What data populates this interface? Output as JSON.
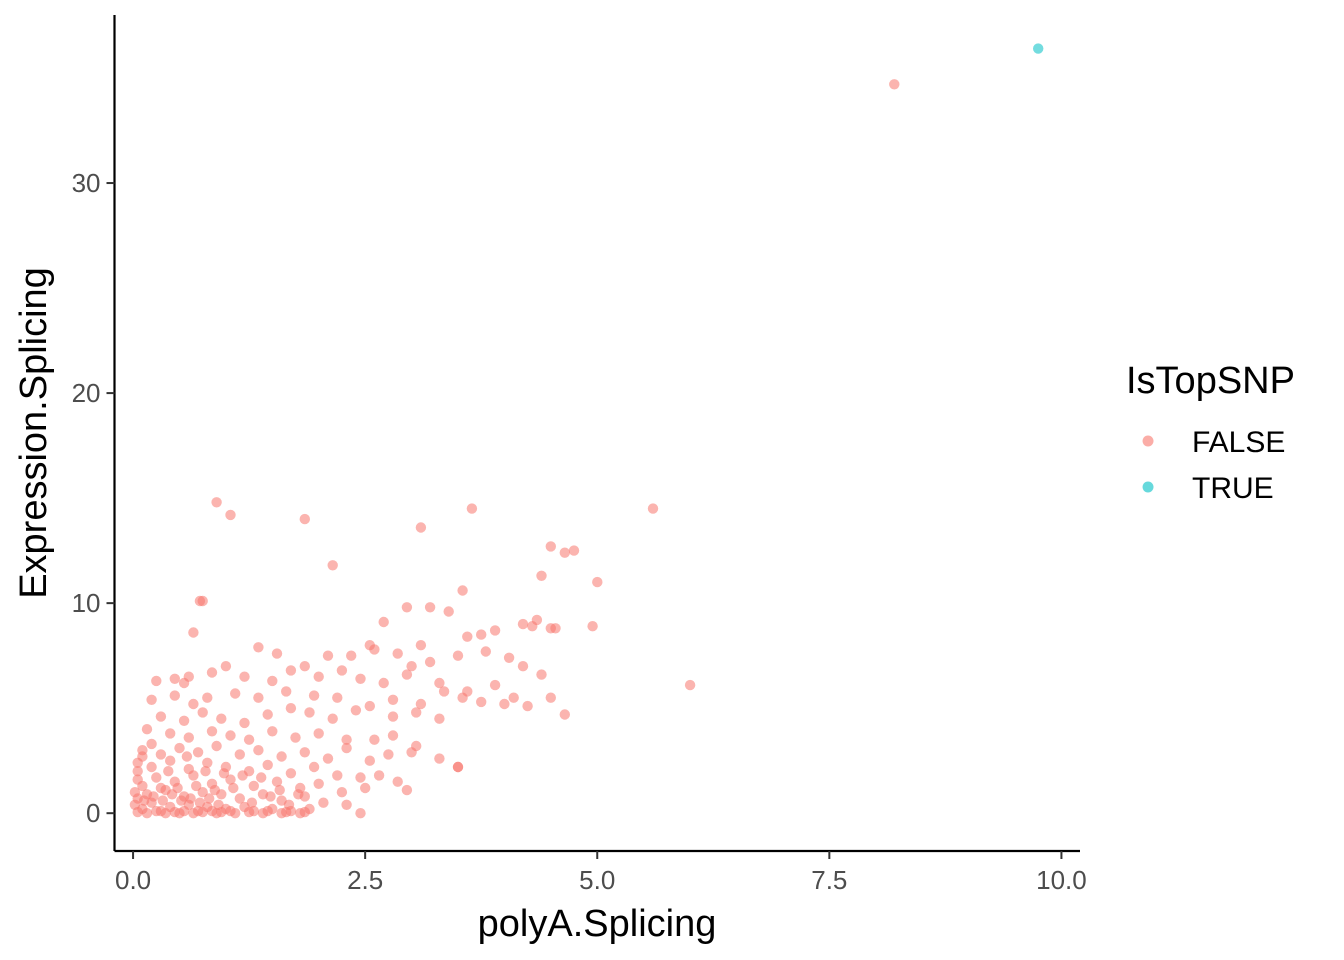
{
  "chart_data": {
    "type": "scatter",
    "xlabel": "polyA.Splicing",
    "ylabel": "Expression.Splicing",
    "xlim": [
      -0.2,
      10.2
    ],
    "ylim": [
      -1.8,
      38.0
    ],
    "x_ticks": [
      0.0,
      2.5,
      5.0,
      7.5,
      10.0
    ],
    "x_tick_labels": [
      "0.0",
      "2.5",
      "5.0",
      "7.5",
      "10.0"
    ],
    "y_ticks": [
      0,
      10,
      20,
      30
    ],
    "y_tick_labels": [
      "0",
      "10",
      "20",
      "30"
    ],
    "grid": false,
    "legend": {
      "title": "IsTopSNP",
      "placement": "right",
      "entries": [
        {
          "label": "FALSE",
          "color": "#F8766D"
        },
        {
          "label": "TRUE",
          "color": "#00BFC4"
        }
      ]
    },
    "point_opacity": 0.55,
    "series": [
      {
        "name": "FALSE",
        "color": "#F8766D",
        "points": [
          [
            8.2,
            34.7
          ],
          [
            5.6,
            14.5
          ],
          [
            3.65,
            14.5
          ],
          [
            0.9,
            14.8
          ],
          [
            1.05,
            14.2
          ],
          [
            1.85,
            14.0
          ],
          [
            3.1,
            13.6
          ],
          [
            4.5,
            12.7
          ],
          [
            4.75,
            12.5
          ],
          [
            4.65,
            12.4
          ],
          [
            2.15,
            11.8
          ],
          [
            4.4,
            11.3
          ],
          [
            5.0,
            11.0
          ],
          [
            3.55,
            10.6
          ],
          [
            0.75,
            10.1
          ],
          [
            0.72,
            10.1
          ],
          [
            2.95,
            9.8
          ],
          [
            3.2,
            9.8
          ],
          [
            3.4,
            9.6
          ],
          [
            4.35,
            9.2
          ],
          [
            4.2,
            9.0
          ],
          [
            4.95,
            8.9
          ],
          [
            4.5,
            8.8
          ],
          [
            4.55,
            8.8
          ],
          [
            4.3,
            8.9
          ],
          [
            3.9,
            8.7
          ],
          [
            3.75,
            8.5
          ],
          [
            3.6,
            8.4
          ],
          [
            2.7,
            9.1
          ],
          [
            2.55,
            8.0
          ],
          [
            3.1,
            8.0
          ],
          [
            0.65,
            8.6
          ],
          [
            1.35,
            7.9
          ],
          [
            1.55,
            7.6
          ],
          [
            2.1,
            7.5
          ],
          [
            2.35,
            7.5
          ],
          [
            2.6,
            7.8
          ],
          [
            2.85,
            7.6
          ],
          [
            3.0,
            7.0
          ],
          [
            3.2,
            7.2
          ],
          [
            3.5,
            7.5
          ],
          [
            3.8,
            7.7
          ],
          [
            4.05,
            7.4
          ],
          [
            4.2,
            7.0
          ],
          [
            4.4,
            6.6
          ],
          [
            6.0,
            6.1
          ],
          [
            0.25,
            6.3
          ],
          [
            0.45,
            6.4
          ],
          [
            0.55,
            6.2
          ],
          [
            0.6,
            6.5
          ],
          [
            0.85,
            6.7
          ],
          [
            1.0,
            7.0
          ],
          [
            1.2,
            6.5
          ],
          [
            1.5,
            6.3
          ],
          [
            1.7,
            6.8
          ],
          [
            1.85,
            7.0
          ],
          [
            2.0,
            6.5
          ],
          [
            2.25,
            6.8
          ],
          [
            2.45,
            6.4
          ],
          [
            2.7,
            6.2
          ],
          [
            2.95,
            6.6
          ],
          [
            3.3,
            6.2
          ],
          [
            3.6,
            5.8
          ],
          [
            3.9,
            6.1
          ],
          [
            4.1,
            5.5
          ],
          [
            4.5,
            5.5
          ],
          [
            4.65,
            4.7
          ],
          [
            0.2,
            5.4
          ],
          [
            0.45,
            5.6
          ],
          [
            0.65,
            5.2
          ],
          [
            0.8,
            5.5
          ],
          [
            1.1,
            5.7
          ],
          [
            1.35,
            5.5
          ],
          [
            1.65,
            5.8
          ],
          [
            1.95,
            5.6
          ],
          [
            2.2,
            5.5
          ],
          [
            2.55,
            5.1
          ],
          [
            2.8,
            5.4
          ],
          [
            3.1,
            5.2
          ],
          [
            3.35,
            5.8
          ],
          [
            3.55,
            5.5
          ],
          [
            3.75,
            5.3
          ],
          [
            4.0,
            5.2
          ],
          [
            4.25,
            5.1
          ],
          [
            0.3,
            4.6
          ],
          [
            0.55,
            4.4
          ],
          [
            0.75,
            4.8
          ],
          [
            0.95,
            4.5
          ],
          [
            1.2,
            4.3
          ],
          [
            1.45,
            4.7
          ],
          [
            1.7,
            5.0
          ],
          [
            1.9,
            4.8
          ],
          [
            2.15,
            4.5
          ],
          [
            2.4,
            4.9
          ],
          [
            2.8,
            4.6
          ],
          [
            3.05,
            4.8
          ],
          [
            3.3,
            4.5
          ],
          [
            0.15,
            4.0
          ],
          [
            0.4,
            3.8
          ],
          [
            0.6,
            3.6
          ],
          [
            0.85,
            3.9
          ],
          [
            1.05,
            3.7
          ],
          [
            1.25,
            3.5
          ],
          [
            1.5,
            3.9
          ],
          [
            1.75,
            3.6
          ],
          [
            2.0,
            3.8
          ],
          [
            2.3,
            3.5
          ],
          [
            2.6,
            3.5
          ],
          [
            2.8,
            3.7
          ],
          [
            3.05,
            3.2
          ],
          [
            0.1,
            3.0
          ],
          [
            0.3,
            2.8
          ],
          [
            0.5,
            3.1
          ],
          [
            0.7,
            2.9
          ],
          [
            0.9,
            3.2
          ],
          [
            1.15,
            2.8
          ],
          [
            1.35,
            3.0
          ],
          [
            1.6,
            2.7
          ],
          [
            1.85,
            2.9
          ],
          [
            2.1,
            2.6
          ],
          [
            2.3,
            3.1
          ],
          [
            2.55,
            2.5
          ],
          [
            2.75,
            2.8
          ],
          [
            3.0,
            2.9
          ],
          [
            3.3,
            2.6
          ],
          [
            3.5,
            2.2
          ],
          [
            3.5,
            2.2
          ],
          [
            0.05,
            2.4
          ],
          [
            0.2,
            2.2
          ],
          [
            0.4,
            2.5
          ],
          [
            0.6,
            2.1
          ],
          [
            0.8,
            2.4
          ],
          [
            1.0,
            2.2
          ],
          [
            1.25,
            2.0
          ],
          [
            1.45,
            2.3
          ],
          [
            1.7,
            1.9
          ],
          [
            1.95,
            2.2
          ],
          [
            2.2,
            1.8
          ],
          [
            2.45,
            1.7
          ],
          [
            2.65,
            1.8
          ],
          [
            2.85,
            1.5
          ],
          [
            0.05,
            1.6
          ],
          [
            0.25,
            1.7
          ],
          [
            0.45,
            1.5
          ],
          [
            0.65,
            1.8
          ],
          [
            0.85,
            1.4
          ],
          [
            1.05,
            1.6
          ],
          [
            1.3,
            1.3
          ],
          [
            1.55,
            1.5
          ],
          [
            1.8,
            1.2
          ],
          [
            2.0,
            1.4
          ],
          [
            2.25,
            1.0
          ],
          [
            2.5,
            1.2
          ],
          [
            2.95,
            1.1
          ],
          [
            0.02,
            1.0
          ],
          [
            0.15,
            0.9
          ],
          [
            0.35,
            1.1
          ],
          [
            0.55,
            0.8
          ],
          [
            0.75,
            1.0
          ],
          [
            0.95,
            0.9
          ],
          [
            1.15,
            0.7
          ],
          [
            1.4,
            0.9
          ],
          [
            1.6,
            0.6
          ],
          [
            1.85,
            0.8
          ],
          [
            2.05,
            0.5
          ],
          [
            2.3,
            0.4
          ],
          [
            2.45,
            0.0
          ],
          [
            0.02,
            0.4
          ],
          [
            0.1,
            0.2
          ],
          [
            0.2,
            0.5
          ],
          [
            0.3,
            0.1
          ],
          [
            0.4,
            0.3
          ],
          [
            0.5,
            0.0
          ],
          [
            0.6,
            0.4
          ],
          [
            0.7,
            0.1
          ],
          [
            0.8,
            0.3
          ],
          [
            0.9,
            0.0
          ],
          [
            1.0,
            0.2
          ],
          [
            1.1,
            0.0
          ],
          [
            1.2,
            0.3
          ],
          [
            1.3,
            0.1
          ],
          [
            1.4,
            0.0
          ],
          [
            1.5,
            0.2
          ],
          [
            1.6,
            0.0
          ],
          [
            1.7,
            0.1
          ],
          [
            1.8,
            0.0
          ],
          [
            1.9,
            0.2
          ],
          [
            0.05,
            0.05
          ],
          [
            0.15,
            0.0
          ],
          [
            0.25,
            0.1
          ],
          [
            0.35,
            0.0
          ],
          [
            0.45,
            0.05
          ],
          [
            0.55,
            0.1
          ],
          [
            0.65,
            0.0
          ],
          [
            0.75,
            0.05
          ],
          [
            0.85,
            0.1
          ],
          [
            0.95,
            0.05
          ],
          [
            1.05,
            0.1
          ],
          [
            1.25,
            0.05
          ],
          [
            1.45,
            0.1
          ],
          [
            1.65,
            0.05
          ],
          [
            1.85,
            0.05
          ],
          [
            0.05,
            0.7
          ],
          [
            0.1,
            1.3
          ],
          [
            0.05,
            2.0
          ],
          [
            0.1,
            2.7
          ],
          [
            0.2,
            3.3
          ],
          [
            0.3,
            1.2
          ],
          [
            0.12,
            0.6
          ],
          [
            0.22,
            0.8
          ],
          [
            0.32,
            0.6
          ],
          [
            0.42,
            0.9
          ],
          [
            0.52,
            0.6
          ],
          [
            0.62,
            0.7
          ],
          [
            0.72,
            0.5
          ],
          [
            0.82,
            0.7
          ],
          [
            0.92,
            0.4
          ],
          [
            0.38,
            2.0
          ],
          [
            0.48,
            1.2
          ],
          [
            0.58,
            2.7
          ],
          [
            0.68,
            1.3
          ],
          [
            0.78,
            2.0
          ],
          [
            0.88,
            1.1
          ],
          [
            0.98,
            1.9
          ],
          [
            1.08,
            1.2
          ],
          [
            1.18,
            1.8
          ],
          [
            1.28,
            0.5
          ],
          [
            1.38,
            1.7
          ],
          [
            1.48,
            0.8
          ],
          [
            1.58,
            1.1
          ],
          [
            1.68,
            0.4
          ],
          [
            1.78,
            0.9
          ]
        ]
      },
      {
        "name": "TRUE",
        "color": "#00BFC4",
        "points": [
          [
            9.75,
            36.4
          ]
        ]
      }
    ]
  }
}
